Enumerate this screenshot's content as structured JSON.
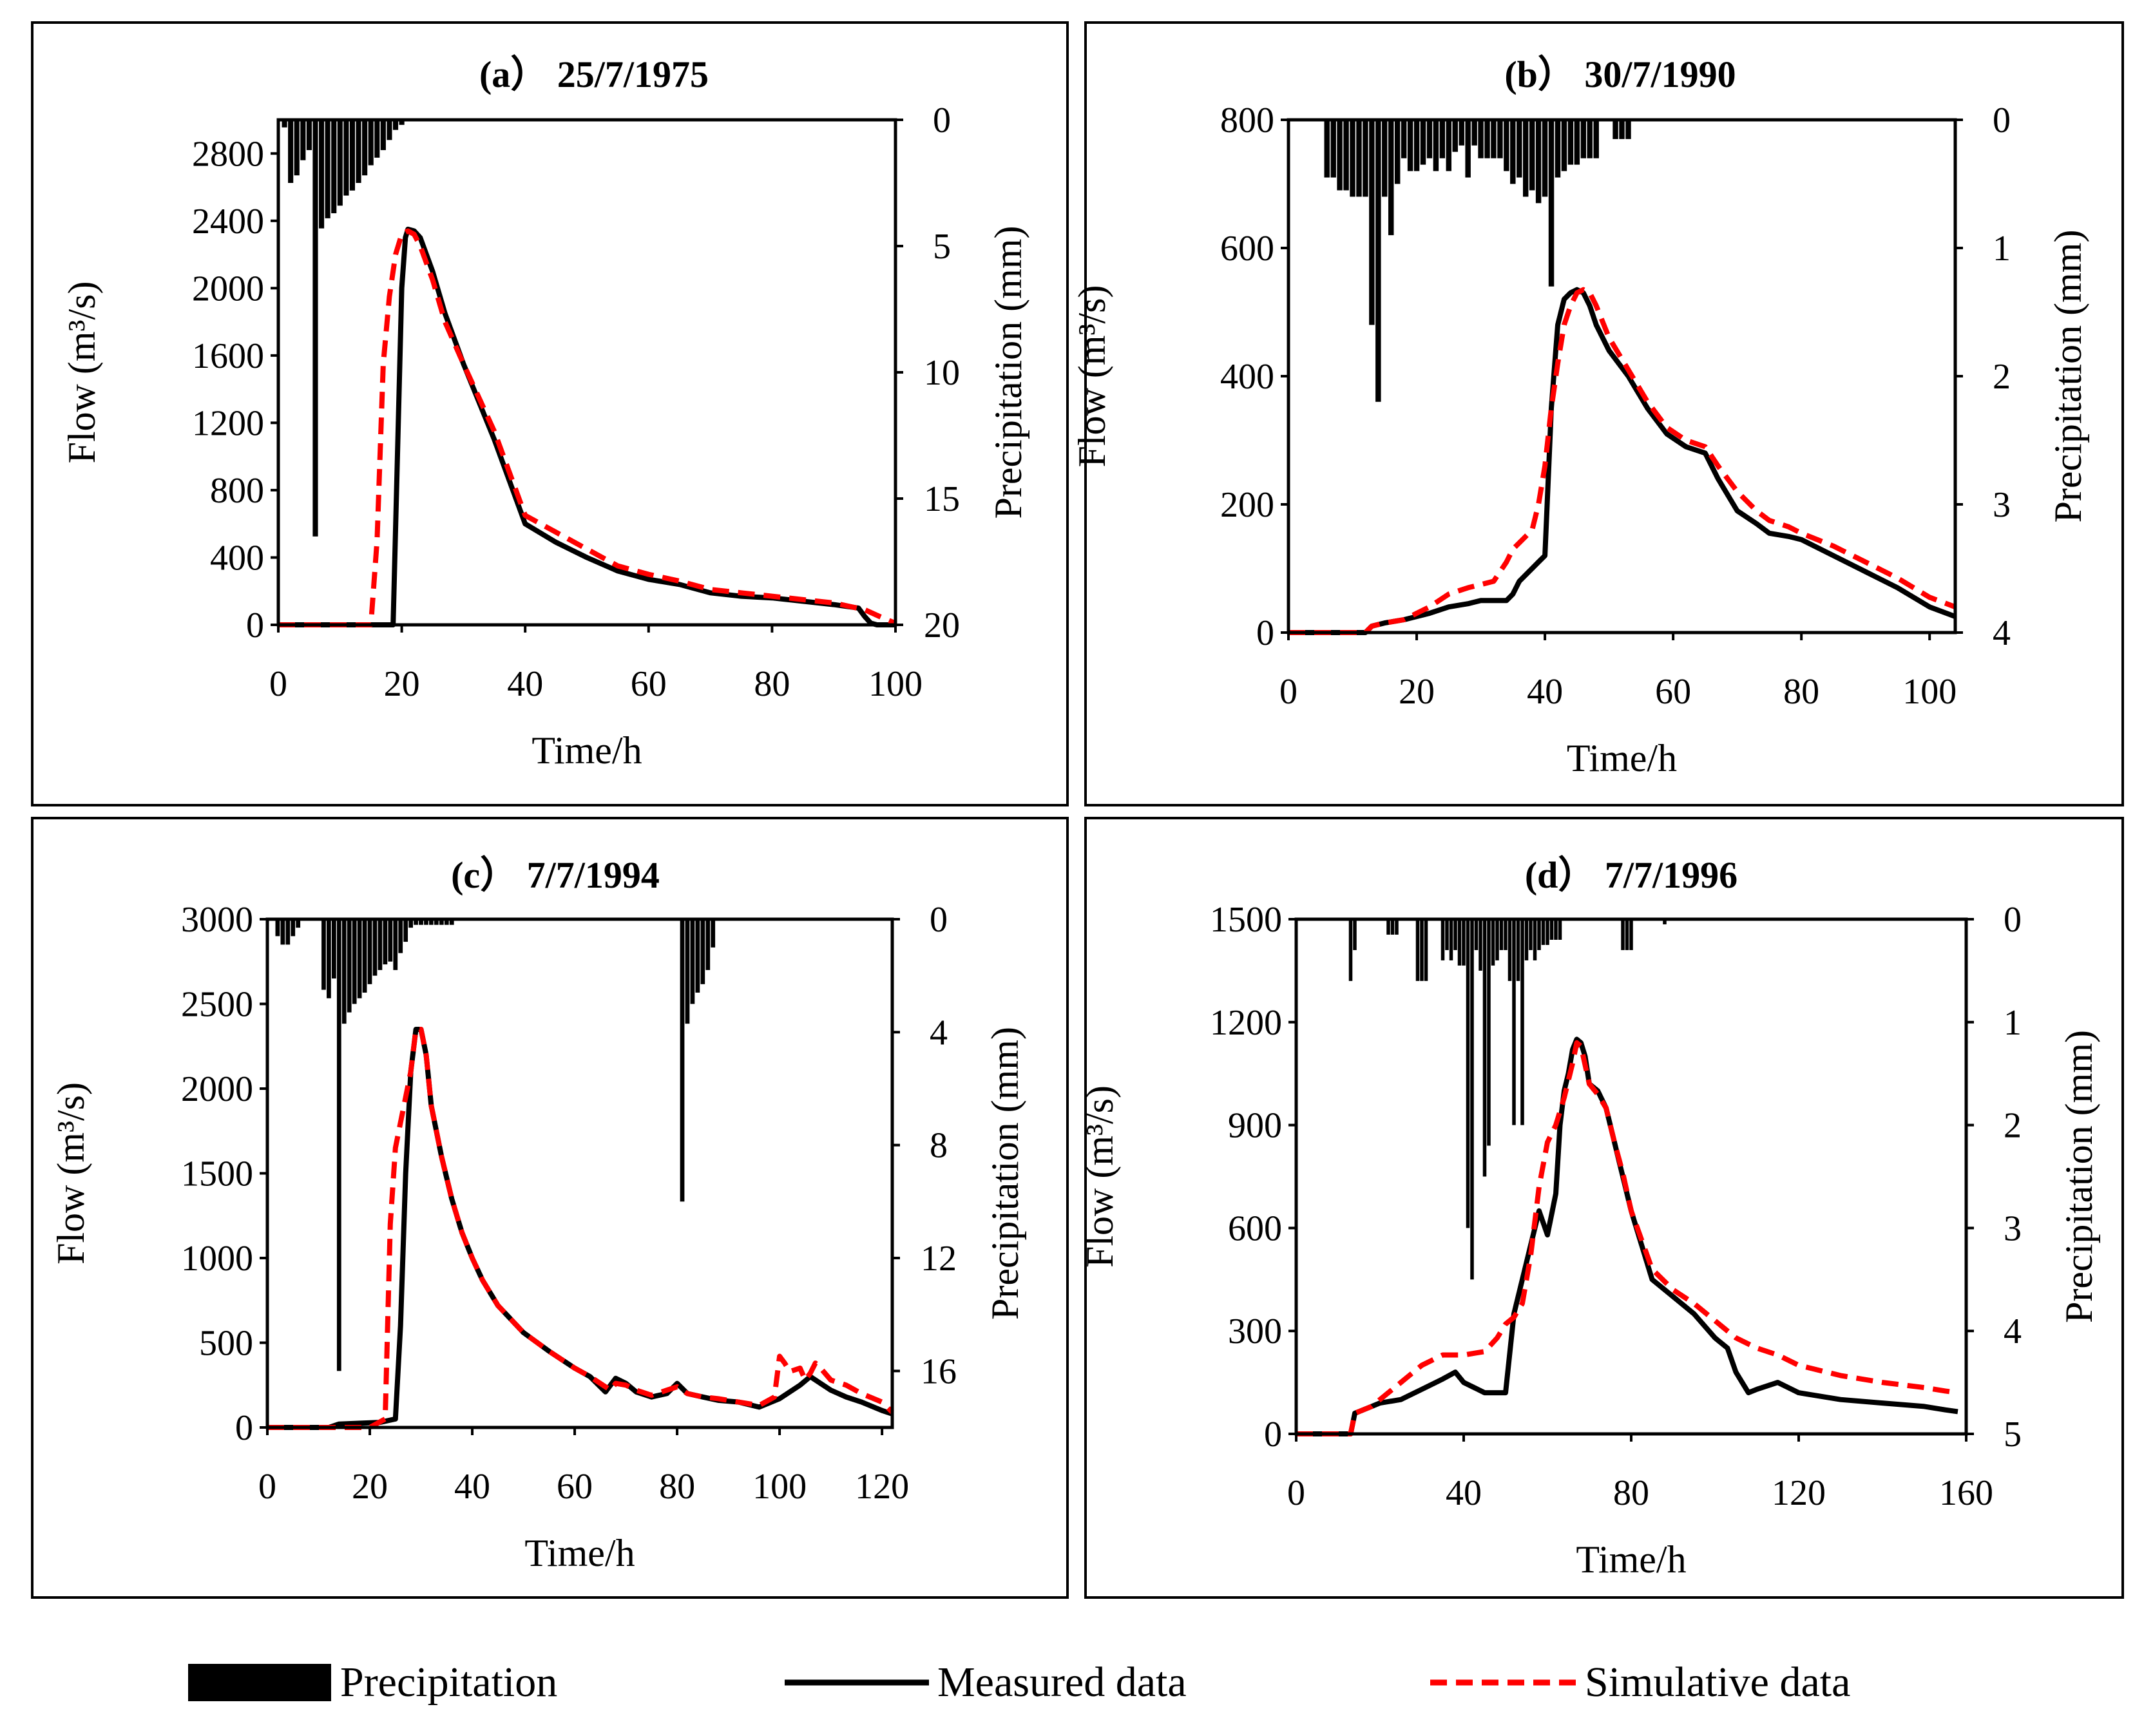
{
  "legend": {
    "precipitation": "Precipitation",
    "measured": "Measured data",
    "simulated": "Simulative data"
  },
  "colors": {
    "measured": "#000000",
    "simulated": "#ff0000",
    "precipitation": "#000000"
  },
  "chart_data": [
    {
      "id": "a",
      "type": "line",
      "title": "(a） 25/7/1975",
      "xlabel": "Time/h",
      "ylabel": "Flow (m³/s)",
      "y2label": "Precipitation (mm)",
      "xlim": [
        0,
        100
      ],
      "xticks": [
        0,
        20,
        40,
        60,
        80,
        100
      ],
      "ylim": [
        0,
        3000
      ],
      "yticks": [
        0,
        400,
        800,
        1200,
        1600,
        2000,
        2400,
        2800
      ],
      "y2lim": [
        0,
        20
      ],
      "y2ticks": [
        0,
        5,
        10,
        15,
        20
      ],
      "y2_inverted": true,
      "precipitation": {
        "x": [
          1,
          2,
          3,
          4,
          5,
          6,
          7,
          8,
          9,
          10,
          11,
          12,
          13,
          14,
          15,
          16,
          17,
          18,
          19,
          20
        ],
        "values": [
          0.3,
          2.5,
          2.2,
          1.6,
          1.2,
          16.5,
          4.3,
          3.9,
          3.7,
          3.4,
          3.0,
          2.8,
          2.5,
          2.2,
          1.8,
          1.5,
          1.2,
          0.8,
          0.4,
          0.2
        ]
      },
      "series": [
        {
          "name": "Measured data",
          "x": [
            0,
            18,
            18.6,
            19.3,
            20,
            20.6,
            21,
            22,
            23,
            25,
            27,
            30,
            35,
            40,
            45,
            50,
            55,
            60,
            65,
            70,
            75,
            80,
            85,
            90,
            94,
            95,
            96,
            97,
            98,
            99,
            100
          ],
          "y": [
            0,
            0,
            0,
            1000,
            2000,
            2300,
            2350,
            2340,
            2300,
            2100,
            1850,
            1550,
            1100,
            600,
            490,
            400,
            320,
            270,
            240,
            190,
            170,
            160,
            140,
            120,
            100,
            50,
            10,
            0,
            0,
            0,
            0
          ]
        },
        {
          "name": "Simulative data",
          "x": [
            0,
            15,
            16,
            17,
            18,
            19,
            20,
            21,
            22,
            23,
            25,
            27,
            30,
            35,
            40,
            45,
            50,
            55,
            60,
            65,
            70,
            75,
            80,
            85,
            90,
            95,
            98,
            100
          ],
          "y": [
            0,
            0,
            500,
            1550,
            1950,
            2200,
            2320,
            2340,
            2320,
            2250,
            2050,
            1800,
            1550,
            1150,
            650,
            550,
            450,
            350,
            300,
            260,
            210,
            190,
            170,
            150,
            130,
            90,
            40,
            10
          ]
        }
      ]
    },
    {
      "id": "b",
      "type": "line",
      "title": "(b） 30/7/1990",
      "xlabel": "Time/h",
      "ylabel": "Flow (m³/s)",
      "y2label": "Precipitation (mm)",
      "xlim": [
        0,
        104
      ],
      "xticks": [
        0,
        20,
        40,
        60,
        80,
        100
      ],
      "ylim": [
        0,
        800
      ],
      "yticks": [
        0,
        200,
        400,
        600,
        800
      ],
      "y2lim": [
        0,
        4
      ],
      "y2ticks": [
        0,
        1,
        2,
        3,
        4
      ],
      "y2_inverted": true,
      "precipitation": {
        "x": [
          6,
          7,
          8,
          9,
          10,
          11,
          12,
          13,
          14,
          15,
          16,
          17,
          18,
          19,
          20,
          21,
          22,
          23,
          24,
          25,
          26,
          27,
          28,
          29,
          30,
          31,
          32,
          33,
          34,
          35,
          36,
          37,
          38,
          39,
          40,
          41,
          42,
          43,
          44,
          45,
          46,
          47,
          48,
          51,
          52,
          53
        ],
        "values": [
          0.45,
          0.45,
          0.55,
          0.55,
          0.6,
          0.6,
          0.6,
          1.6,
          2.2,
          0.6,
          0.9,
          0.5,
          0.3,
          0.4,
          0.4,
          0.35,
          0.3,
          0.4,
          0.3,
          0.4,
          0.25,
          0.2,
          0.45,
          0.2,
          0.3,
          0.3,
          0.3,
          0.3,
          0.4,
          0.5,
          0.45,
          0.6,
          0.55,
          0.65,
          0.6,
          1.3,
          0.45,
          0.4,
          0.35,
          0.35,
          0.3,
          0.3,
          0.3,
          0.15,
          0.15,
          0.15
        ]
      },
      "series": [
        {
          "name": "Measured data",
          "x": [
            0,
            12,
            13,
            15,
            18,
            20,
            22,
            25,
            28,
            30,
            32,
            34,
            35,
            36,
            37,
            38,
            39,
            40,
            41,
            42,
            43,
            44,
            45,
            46,
            47,
            48,
            50,
            53,
            56,
            59,
            62,
            65,
            67,
            70,
            73,
            75,
            78,
            80,
            85,
            90,
            95,
            100,
            104
          ],
          "y": [
            0,
            0,
            10,
            15,
            20,
            25,
            30,
            40,
            45,
            50,
            50,
            50,
            60,
            80,
            90,
            100,
            110,
            120,
            350,
            480,
            520,
            530,
            535,
            530,
            510,
            480,
            440,
            400,
            350,
            310,
            290,
            280,
            240,
            190,
            170,
            155,
            150,
            145,
            120,
            95,
            70,
            40,
            25
          ]
        },
        {
          "name": "Simulative data",
          "x": [
            0,
            12,
            13,
            15,
            18,
            20,
            22,
            25,
            28,
            30,
            32,
            34,
            35,
            36,
            37,
            38,
            39,
            40,
            41,
            42,
            43,
            44,
            45,
            46,
            47,
            48,
            50,
            53,
            56,
            59,
            62,
            65,
            67,
            70,
            73,
            75,
            78,
            80,
            85,
            90,
            95,
            100,
            104
          ],
          "y": [
            0,
            0,
            10,
            15,
            20,
            30,
            40,
            60,
            70,
            75,
            80,
            110,
            130,
            140,
            150,
            160,
            200,
            260,
            350,
            420,
            480,
            510,
            530,
            535,
            530,
            510,
            460,
            410,
            360,
            320,
            300,
            290,
            260,
            220,
            190,
            175,
            165,
            155,
            135,
            110,
            85,
            55,
            40
          ]
        }
      ]
    },
    {
      "id": "c",
      "type": "line",
      "title": "(c） 7/7/1994",
      "xlabel": "Time/h",
      "ylabel": "Flow (m³/s)",
      "y2label": "Precipitation (mm)",
      "xlim": [
        0,
        122
      ],
      "xticks": [
        0,
        20,
        40,
        60,
        80,
        100,
        120
      ],
      "ylim": [
        0,
        3000
      ],
      "yticks": [
        0,
        500,
        1000,
        1500,
        2000,
        2500,
        3000
      ],
      "y2lim": [
        0,
        18
      ],
      "y2ticks": [
        0,
        4,
        8,
        12,
        16
      ],
      "y2_inverted": true,
      "precipitation": {
        "x": [
          2,
          3,
          4,
          5,
          6,
          11,
          12,
          13,
          14,
          15,
          16,
          17,
          18,
          19,
          20,
          21,
          22,
          23,
          24,
          25,
          26,
          27,
          28,
          29,
          30,
          31,
          32,
          33,
          34,
          35,
          36,
          81,
          82,
          83,
          84,
          85,
          86,
          87
        ],
        "values": [
          0.6,
          0.9,
          0.9,
          0.6,
          0.3,
          2.5,
          2.8,
          2.1,
          16,
          3.7,
          3.3,
          3.0,
          2.8,
          2.6,
          2.3,
          2.0,
          1.8,
          1.6,
          1.5,
          1.8,
          1.2,
          0.8,
          0.3,
          0.2,
          0.2,
          0.2,
          0.2,
          0.2,
          0.2,
          0.2,
          0.2,
          10,
          3.7,
          3.0,
          2.6,
          2.3,
          1.8,
          1.0
        ]
      },
      "series": [
        {
          "name": "Measured data",
          "x": [
            0,
            12,
            14,
            22,
            25,
            26,
            27,
            28,
            29,
            30,
            31,
            32,
            34,
            36,
            38,
            40,
            42,
            45,
            50,
            55,
            60,
            63,
            65,
            66,
            68,
            70,
            72,
            75,
            78,
            80,
            82,
            85,
            88,
            92,
            96,
            100,
            104,
            106,
            108,
            110,
            113,
            116,
            120,
            122
          ],
          "y": [
            0,
            0,
            20,
            30,
            50,
            600,
            1500,
            2100,
            2350,
            2350,
            2200,
            1900,
            1600,
            1350,
            1150,
            1000,
            870,
            720,
            560,
            450,
            350,
            300,
            240,
            210,
            290,
            260,
            210,
            180,
            200,
            260,
            200,
            180,
            160,
            150,
            120,
            170,
            250,
            300,
            260,
            220,
            180,
            150,
            100,
            80
          ]
        },
        {
          "name": "Simulative data",
          "x": [
            0,
            20,
            23,
            24,
            25,
            26,
            27,
            28,
            29,
            30,
            31,
            32,
            34,
            36,
            38,
            40,
            42,
            45,
            50,
            55,
            60,
            63,
            65,
            67,
            68,
            70,
            72,
            75,
            78,
            80,
            82,
            85,
            88,
            92,
            96,
            99,
            100,
            101,
            102,
            104,
            105,
            106,
            107,
            108,
            110,
            113,
            116,
            120,
            122
          ],
          "y": [
            0,
            0,
            50,
            1200,
            1650,
            1800,
            1950,
            2100,
            2350,
            2350,
            2200,
            1900,
            1600,
            1350,
            1150,
            1000,
            870,
            720,
            560,
            450,
            350,
            300,
            260,
            220,
            260,
            250,
            220,
            190,
            220,
            240,
            200,
            180,
            170,
            150,
            130,
            180,
            420,
            380,
            330,
            350,
            280,
            320,
            380,
            350,
            280,
            250,
            200,
            150,
            90
          ]
        }
      ]
    },
    {
      "id": "d",
      "type": "line",
      "title": "(d） 7/7/1996",
      "xlabel": "Time/h",
      "ylabel": "Flow (m³/s)",
      "y2label": "Precipitation (mm)",
      "xlim": [
        0,
        160
      ],
      "xticks": [
        0,
        40,
        80,
        120,
        160
      ],
      "ylim": [
        0,
        1500
      ],
      "yticks": [
        0,
        300,
        600,
        900,
        1200,
        1500
      ],
      "y2lim": [
        0,
        5
      ],
      "y2ticks": [
        0,
        1,
        2,
        3,
        4,
        5
      ],
      "y2_inverted": true,
      "precipitation": {
        "x": [
          13,
          14,
          22,
          23,
          24,
          29,
          30,
          31,
          35,
          36,
          37,
          38,
          39,
          40,
          41,
          42,
          43,
          44,
          45,
          46,
          47,
          48,
          49,
          50,
          51,
          52,
          53,
          54,
          55,
          56,
          57,
          58,
          59,
          60,
          61,
          62,
          63,
          78,
          79,
          80,
          88
        ],
        "values": [
          0.6,
          0.3,
          0.15,
          0.15,
          0.15,
          0.6,
          0.6,
          0.6,
          0.4,
          0.3,
          0.4,
          0.3,
          0.45,
          0.45,
          3.0,
          3.5,
          0.3,
          0.5,
          2.5,
          2.2,
          0.45,
          0.4,
          0.3,
          0.3,
          0.6,
          2.0,
          0.6,
          2.0,
          0.4,
          0.3,
          0.4,
          0.3,
          0.25,
          0.25,
          0.2,
          0.2,
          0.2,
          0.3,
          0.3,
          0.3,
          0.05
        ]
      },
      "series": [
        {
          "name": "Measured data",
          "x": [
            0,
            13,
            14,
            18,
            20,
            25,
            30,
            35,
            38,
            40,
            45,
            50,
            52,
            54,
            56,
            58,
            60,
            62,
            63,
            64,
            65,
            66,
            67,
            68,
            69,
            70,
            72,
            74,
            76,
            78,
            80,
            85,
            90,
            95,
            100,
            103,
            105,
            108,
            110,
            115,
            120,
            130,
            140,
            150,
            155,
            158
          ],
          "y": [
            0,
            0,
            60,
            80,
            90,
            100,
            130,
            160,
            180,
            150,
            120,
            120,
            350,
            450,
            550,
            650,
            580,
            700,
            900,
            1000,
            1050,
            1120,
            1150,
            1140,
            1100,
            1020,
            1000,
            950,
            850,
            750,
            650,
            450,
            400,
            350,
            280,
            250,
            180,
            120,
            130,
            150,
            120,
            100,
            90,
            80,
            70,
            65
          ]
        },
        {
          "name": "Simulative data",
          "x": [
            0,
            13,
            14,
            18,
            20,
            25,
            30,
            35,
            40,
            45,
            48,
            50,
            52,
            54,
            56,
            58,
            60,
            62,
            64,
            66,
            67,
            68,
            70,
            72,
            74,
            76,
            78,
            80,
            85,
            90,
            95,
            100,
            105,
            110,
            115,
            120,
            130,
            140,
            150,
            155,
            158
          ],
          "y": [
            0,
            0,
            60,
            80,
            100,
            150,
            200,
            230,
            230,
            240,
            280,
            320,
            340,
            380,
            520,
            720,
            850,
            900,
            980,
            1080,
            1140,
            1130,
            1020,
            990,
            950,
            850,
            760,
            650,
            480,
            420,
            380,
            330,
            280,
            250,
            230,
            200,
            170,
            150,
            135,
            125,
            120
          ]
        }
      ]
    }
  ]
}
